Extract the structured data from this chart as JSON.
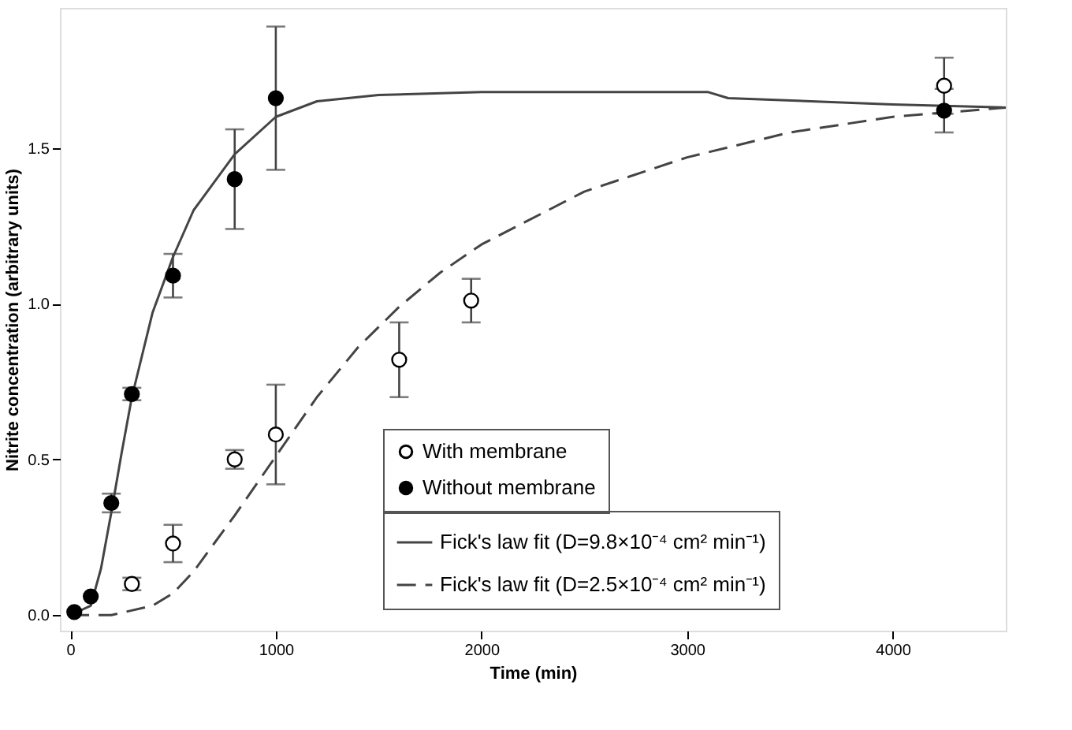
{
  "chart_data": {
    "type": "scatter",
    "xlabel": "Time (min)",
    "ylabel": "Nitrite concentration (arbitrary units)",
    "xlim": [
      -50,
      4550
    ],
    "ylim": [
      -0.05,
      1.95
    ],
    "xticks": [
      0,
      1000,
      2000,
      3000,
      4000
    ],
    "yticks": [
      {
        "value": 0,
        "label": "0.0"
      },
      {
        "value": 0.5,
        "label": "0.5"
      },
      {
        "value": 1,
        "label": "1.0"
      },
      {
        "value": 1.5,
        "label": "1.5"
      }
    ],
    "grid": false,
    "legend": "bottom right",
    "marker": "circle",
    "series": [
      {
        "name": "With membrane",
        "color": "#ffffff",
        "x": [
          300,
          500,
          800,
          1000,
          1600,
          1950,
          4250
        ],
        "values": [
          0.1,
          0.23,
          0.5,
          0.58,
          0.82,
          1.01,
          1.7
        ],
        "errors": [
          0.02,
          0.06,
          0.03,
          0.16,
          0.12,
          0.07,
          0.09
        ]
      },
      {
        "name": "Without membrane",
        "color": "#000000",
        "x": [
          20,
          100,
          200,
          300,
          500,
          800,
          1000,
          4250
        ],
        "values": [
          0.01,
          0.06,
          0.36,
          0.71,
          1.09,
          1.4,
          1.66,
          1.62
        ],
        "errors": [
          null,
          null,
          0.03,
          0.02,
          0.07,
          0.16,
          0.23,
          0.07
        ]
      },
      {
        "name": "Fick's law fit (D=9.8×10⁻⁴ cm² min⁻¹)",
        "type": "line",
        "marker": "none",
        "line_style": "solid",
        "color": "#444444",
        "x": [
          0,
          100,
          150,
          200,
          250,
          300,
          400,
          500,
          600,
          800,
          1000,
          1200,
          1500,
          2000,
          3100,
          3200,
          4000,
          4550
        ],
        "values": [
          0,
          0.03,
          0.15,
          0.33,
          0.52,
          0.7,
          0.97,
          1.15,
          1.3,
          1.48,
          1.6,
          1.65,
          1.67,
          1.68,
          1.68,
          1.66,
          1.64,
          1.63
        ]
      },
      {
        "name": "Fick's law fit (D=2.5×10⁻⁴ cm² min⁻¹)",
        "type": "line",
        "marker": "none",
        "line_style": "dashed",
        "color": "#444444",
        "x": [
          0,
          200,
          400,
          500,
          600,
          800,
          1000,
          1200,
          1400,
          1600,
          1800,
          2000,
          2500,
          3000,
          3500,
          4000,
          4550
        ],
        "values": [
          0,
          0,
          0.03,
          0.07,
          0.14,
          0.32,
          0.51,
          0.7,
          0.86,
          0.99,
          1.1,
          1.19,
          1.36,
          1.47,
          1.55,
          1.6,
          1.63
        ]
      }
    ]
  }
}
